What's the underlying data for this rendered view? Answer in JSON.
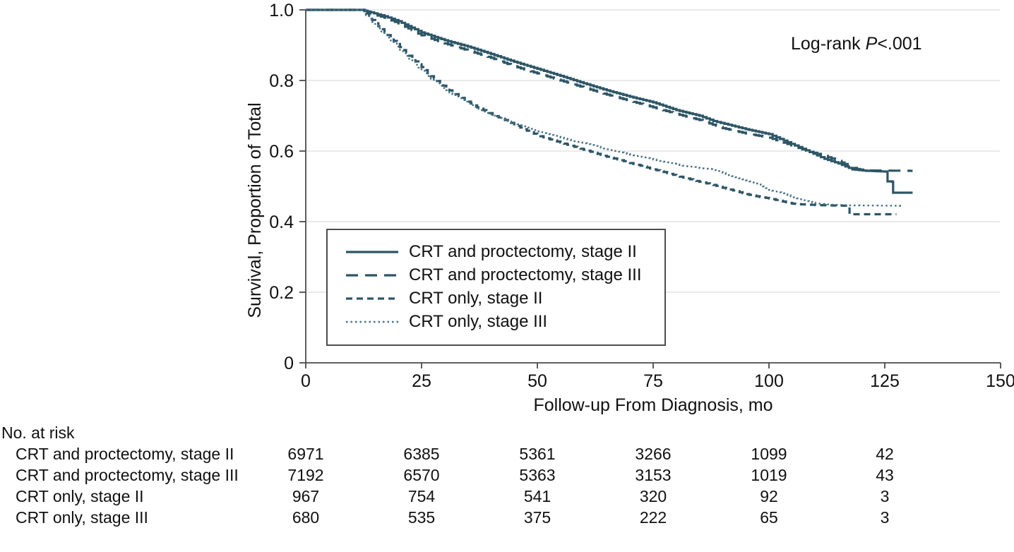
{
  "figure": {
    "annotation": {
      "prefix": "Log-rank ",
      "stat": "P",
      "suffix": "<.001"
    }
  },
  "chart_data": {
    "type": "line",
    "subtype": "kaplan-meier-survival",
    "title": "",
    "xlabel": "Follow-up From Diagnosis, mo",
    "ylabel": "Survival, Proportion of Total",
    "xlim": [
      0,
      150
    ],
    "ylim": [
      0,
      1
    ],
    "x_ticks": [
      0,
      25,
      50,
      75,
      100,
      125,
      150
    ],
    "x_tick_labels": [
      "0",
      "25",
      "50",
      "75",
      "100",
      "125",
      "150"
    ],
    "y_ticks": [
      0,
      0.2,
      0.4,
      0.6,
      0.8,
      1.0
    ],
    "y_tick_labels": [
      "0",
      "0.2",
      "0.4",
      "0.6",
      "0.8",
      "1.0"
    ],
    "grid": "horizontal",
    "legend_position": "lower-left-box",
    "annotation": "Log-rank P<.001",
    "colors": {
      "line": "#2d5666",
      "line_dotted": "#477081",
      "grid": "#e4e4e4",
      "axis": "#4a4a4a",
      "text": "#111111"
    },
    "series": [
      {
        "name": "CRT and proctectomy, stage II",
        "style": "solid",
        "points": [
          [
            0,
            1.0
          ],
          [
            12,
            1.0
          ],
          [
            14,
            0.993
          ],
          [
            17,
            0.982
          ],
          [
            20,
            0.968
          ],
          [
            25,
            0.936
          ],
          [
            30,
            0.914
          ],
          [
            35,
            0.896
          ],
          [
            40,
            0.875
          ],
          [
            45,
            0.853
          ],
          [
            50,
            0.833
          ],
          [
            55,
            0.813
          ],
          [
            60,
            0.792
          ],
          [
            65,
            0.772
          ],
          [
            70,
            0.754
          ],
          [
            75,
            0.738
          ],
          [
            80,
            0.716
          ],
          [
            85,
            0.7
          ],
          [
            88,
            0.685
          ],
          [
            92,
            0.672
          ],
          [
            95,
            0.662
          ],
          [
            100,
            0.648
          ],
          [
            104,
            0.625
          ],
          [
            108,
            0.602
          ],
          [
            112,
            0.578
          ],
          [
            115,
            0.565
          ],
          [
            118,
            0.548
          ],
          [
            121,
            0.544
          ],
          [
            125,
            0.542
          ],
          [
            125.6,
            0.514
          ],
          [
            126.6,
            0.513
          ],
          [
            126.8,
            0.482
          ],
          [
            131,
            0.482
          ]
        ]
      },
      {
        "name": "CRT and proctectomy, stage III",
        "style": "long-dash",
        "points": [
          [
            0,
            1.0
          ],
          [
            12,
            1.0
          ],
          [
            14,
            0.99
          ],
          [
            17,
            0.978
          ],
          [
            20,
            0.962
          ],
          [
            25,
            0.928
          ],
          [
            30,
            0.905
          ],
          [
            35,
            0.885
          ],
          [
            40,
            0.864
          ],
          [
            45,
            0.84
          ],
          [
            50,
            0.82
          ],
          [
            55,
            0.8
          ],
          [
            60,
            0.78
          ],
          [
            65,
            0.76
          ],
          [
            70,
            0.742
          ],
          [
            75,
            0.724
          ],
          [
            80,
            0.705
          ],
          [
            85,
            0.688
          ],
          [
            90,
            0.665
          ],
          [
            95,
            0.65
          ],
          [
            100,
            0.638
          ],
          [
            104,
            0.62
          ],
          [
            108,
            0.601
          ],
          [
            112,
            0.586
          ],
          [
            115,
            0.572
          ],
          [
            117,
            0.559
          ],
          [
            119,
            0.549
          ],
          [
            121,
            0.545
          ],
          [
            131,
            0.544
          ]
        ]
      },
      {
        "name": "CRT only, stage II",
        "style": "short-dash",
        "points": [
          [
            0,
            1.0
          ],
          [
            12,
            1.0
          ],
          [
            13,
            0.99
          ],
          [
            15,
            0.962
          ],
          [
            17,
            0.937
          ],
          [
            19,
            0.912
          ],
          [
            21,
            0.886
          ],
          [
            23,
            0.862
          ],
          [
            25,
            0.838
          ],
          [
            27,
            0.812
          ],
          [
            29,
            0.792
          ],
          [
            31,
            0.772
          ],
          [
            33,
            0.756
          ],
          [
            35,
            0.74
          ],
          [
            37,
            0.724
          ],
          [
            39,
            0.712
          ],
          [
            41,
            0.699
          ],
          [
            43,
            0.688
          ],
          [
            45,
            0.676
          ],
          [
            47,
            0.662
          ],
          [
            50,
            0.645
          ],
          [
            52,
            0.636
          ],
          [
            55,
            0.624
          ],
          [
            58,
            0.612
          ],
          [
            60,
            0.604
          ],
          [
            63,
            0.592
          ],
          [
            65,
            0.584
          ],
          [
            68,
            0.574
          ],
          [
            70,
            0.566
          ],
          [
            73,
            0.556
          ],
          [
            75,
            0.548
          ],
          [
            78,
            0.538
          ],
          [
            80,
            0.53
          ],
          [
            83,
            0.52
          ],
          [
            85,
            0.513
          ],
          [
            88,
            0.504
          ],
          [
            90,
            0.496
          ],
          [
            93,
            0.486
          ],
          [
            95,
            0.478
          ],
          [
            98,
            0.47
          ],
          [
            100,
            0.466
          ],
          [
            103,
            0.457
          ],
          [
            105,
            0.451
          ],
          [
            107,
            0.449
          ],
          [
            110,
            0.447
          ],
          [
            113,
            0.446
          ],
          [
            117,
            0.445
          ],
          [
            117.4,
            0.421
          ],
          [
            127.5,
            0.421
          ]
        ]
      },
      {
        "name": "CRT only, stage III",
        "style": "dotted",
        "points": [
          [
            0,
            1.0
          ],
          [
            12,
            1.0
          ],
          [
            13,
            0.985
          ],
          [
            15,
            0.956
          ],
          [
            17,
            0.93
          ],
          [
            19,
            0.905
          ],
          [
            21,
            0.878
          ],
          [
            23,
            0.853
          ],
          [
            25,
            0.828
          ],
          [
            27,
            0.805
          ],
          [
            29,
            0.785
          ],
          [
            31,
            0.766
          ],
          [
            33,
            0.75
          ],
          [
            35,
            0.735
          ],
          [
            37,
            0.72
          ],
          [
            39,
            0.708
          ],
          [
            41,
            0.697
          ],
          [
            43,
            0.687
          ],
          [
            45,
            0.679
          ],
          [
            47,
            0.67
          ],
          [
            50,
            0.656
          ],
          [
            52,
            0.648
          ],
          [
            55,
            0.638
          ],
          [
            58,
            0.628
          ],
          [
            60,
            0.622
          ],
          [
            63,
            0.612
          ],
          [
            65,
            0.605
          ],
          [
            68,
            0.596
          ],
          [
            70,
            0.59
          ],
          [
            73,
            0.582
          ],
          [
            75,
            0.576
          ],
          [
            78,
            0.568
          ],
          [
            80,
            0.562
          ],
          [
            82,
            0.557
          ],
          [
            85,
            0.552
          ],
          [
            87,
            0.549
          ],
          [
            90,
            0.538
          ],
          [
            92,
            0.529
          ],
          [
            95,
            0.517
          ],
          [
            98,
            0.505
          ],
          [
            100,
            0.49
          ],
          [
            102,
            0.483
          ],
          [
            104,
            0.475
          ],
          [
            106,
            0.466
          ],
          [
            108,
            0.458
          ],
          [
            110,
            0.452
          ],
          [
            112,
            0.449
          ],
          [
            115,
            0.447
          ],
          [
            118,
            0.446
          ],
          [
            129,
            0.445
          ]
        ]
      }
    ]
  },
  "risk_table": {
    "header": "No. at risk",
    "time_points": [
      0,
      25,
      50,
      75,
      100,
      125
    ],
    "rows": [
      {
        "label": "CRT and proctectomy, stage II",
        "counts": [
          "6971",
          "6385",
          "5361",
          "3266",
          "1099",
          "42"
        ]
      },
      {
        "label": "CRT and proctectomy, stage III",
        "counts": [
          "7192",
          "6570",
          "5363",
          "3153",
          "1019",
          "43"
        ]
      },
      {
        "label": "CRT only, stage II",
        "counts": [
          "967",
          "754",
          "541",
          "320",
          "92",
          "3"
        ]
      },
      {
        "label": "CRT only, stage III",
        "counts": [
          "680",
          "535",
          "375",
          "222",
          "65",
          "3"
        ]
      }
    ]
  }
}
